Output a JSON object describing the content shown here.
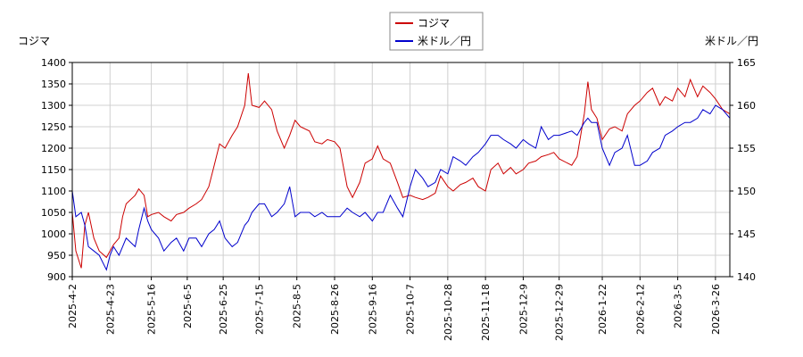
{
  "chart_data": {
    "type": "line",
    "left_axis_label": "コジマ",
    "right_axis_label": "米ドル／円",
    "left_ylim": [
      900,
      1400
    ],
    "right_ylim": [
      140,
      165
    ],
    "left_yticks": [
      900,
      950,
      1000,
      1050,
      1100,
      1150,
      1200,
      1250,
      1300,
      1350,
      1400
    ],
    "right_yticks": [
      140,
      145,
      150,
      155,
      160,
      165
    ],
    "xlim": [
      "2025-04-02",
      "2026-04-03"
    ],
    "xtick_labels": [
      "2025-4-2",
      "2025-4-23",
      "2025-5-16",
      "2025-6-5",
      "2025-6-25",
      "2025-7-15",
      "2025-8-5",
      "2025-8-26",
      "2025-9-16",
      "2025-10-7",
      "2025-10-28",
      "2025-11-18",
      "2025-12-9",
      "2025-12-29",
      "2026-1-22",
      "2026-2-12",
      "2026-3-5",
      "2026-3-26"
    ],
    "xtick_dates": [
      "2025-04-02",
      "2025-04-23",
      "2025-05-16",
      "2025-06-05",
      "2025-06-25",
      "2025-07-15",
      "2025-08-05",
      "2025-08-26",
      "2025-09-16",
      "2025-10-07",
      "2025-10-28",
      "2025-11-18",
      "2025-12-09",
      "2025-12-29",
      "2026-01-22",
      "2026-02-12",
      "2026-03-05",
      "2026-03-26"
    ],
    "grid": true,
    "legend_position": "top-center",
    "series": [
      {
        "name": "コジマ",
        "color": "#cc0000",
        "axis": "left",
        "points": [
          [
            "2025-04-02",
            1050
          ],
          [
            "2025-04-04",
            960
          ],
          [
            "2025-04-07",
            920
          ],
          [
            "2025-04-09",
            1020
          ],
          [
            "2025-04-11",
            1050
          ],
          [
            "2025-04-14",
            990
          ],
          [
            "2025-04-17",
            960
          ],
          [
            "2025-04-21",
            945
          ],
          [
            "2025-04-23",
            960
          ],
          [
            "2025-04-25",
            975
          ],
          [
            "2025-04-28",
            990
          ],
          [
            "2025-04-30",
            1040
          ],
          [
            "2025-05-02",
            1070
          ],
          [
            "2025-05-07",
            1090
          ],
          [
            "2025-05-09",
            1105
          ],
          [
            "2025-05-12",
            1090
          ],
          [
            "2025-05-14",
            1040
          ],
          [
            "2025-05-16",
            1045
          ],
          [
            "2025-05-20",
            1050
          ],
          [
            "2025-05-23",
            1040
          ],
          [
            "2025-05-27",
            1030
          ],
          [
            "2025-05-30",
            1045
          ],
          [
            "2025-06-03",
            1050
          ],
          [
            "2025-06-06",
            1060
          ],
          [
            "2025-06-10",
            1070
          ],
          [
            "2025-06-13",
            1080
          ],
          [
            "2025-06-17",
            1110
          ],
          [
            "2025-06-20",
            1160
          ],
          [
            "2025-06-23",
            1210
          ],
          [
            "2025-06-26",
            1200
          ],
          [
            "2025-06-30",
            1230
          ],
          [
            "2025-07-03",
            1250
          ],
          [
            "2025-07-07",
            1300
          ],
          [
            "2025-07-09",
            1375
          ],
          [
            "2025-07-11",
            1300
          ],
          [
            "2025-07-15",
            1295
          ],
          [
            "2025-07-18",
            1310
          ],
          [
            "2025-07-22",
            1290
          ],
          [
            "2025-07-25",
            1240
          ],
          [
            "2025-07-29",
            1200
          ],
          [
            "2025-08-01",
            1230
          ],
          [
            "2025-08-04",
            1265
          ],
          [
            "2025-08-07",
            1250
          ],
          [
            "2025-08-12",
            1240
          ],
          [
            "2025-08-15",
            1215
          ],
          [
            "2025-08-19",
            1210
          ],
          [
            "2025-08-22",
            1220
          ],
          [
            "2025-08-26",
            1215
          ],
          [
            "2025-08-29",
            1200
          ],
          [
            "2025-09-02",
            1110
          ],
          [
            "2025-09-05",
            1085
          ],
          [
            "2025-09-09",
            1120
          ],
          [
            "2025-09-12",
            1165
          ],
          [
            "2025-09-16",
            1175
          ],
          [
            "2025-09-19",
            1205
          ],
          [
            "2025-09-22",
            1175
          ],
          [
            "2025-09-26",
            1165
          ],
          [
            "2025-09-30",
            1120
          ],
          [
            "2025-10-03",
            1085
          ],
          [
            "2025-10-07",
            1090
          ],
          [
            "2025-10-10",
            1085
          ],
          [
            "2025-10-14",
            1080
          ],
          [
            "2025-10-17",
            1085
          ],
          [
            "2025-10-21",
            1095
          ],
          [
            "2025-10-24",
            1135
          ],
          [
            "2025-10-28",
            1110
          ],
          [
            "2025-10-31",
            1100
          ],
          [
            "2025-11-04",
            1115
          ],
          [
            "2025-11-07",
            1120
          ],
          [
            "2025-11-11",
            1130
          ],
          [
            "2025-11-14",
            1110
          ],
          [
            "2025-11-18",
            1100
          ],
          [
            "2025-11-21",
            1150
          ],
          [
            "2025-11-25",
            1165
          ],
          [
            "2025-11-28",
            1140
          ],
          [
            "2025-12-02",
            1155
          ],
          [
            "2025-12-05",
            1140
          ],
          [
            "2025-12-09",
            1150
          ],
          [
            "2025-12-12",
            1165
          ],
          [
            "2025-12-16",
            1170
          ],
          [
            "2025-12-19",
            1180
          ],
          [
            "2025-12-23",
            1185
          ],
          [
            "2025-12-26",
            1190
          ],
          [
            "2025-12-29",
            1175
          ],
          [
            "2026-01-05",
            1160
          ],
          [
            "2026-01-08",
            1180
          ],
          [
            "2026-01-12",
            1280
          ],
          [
            "2026-01-14",
            1355
          ],
          [
            "2026-01-16",
            1290
          ],
          [
            "2026-01-19",
            1270
          ],
          [
            "2026-01-22",
            1220
          ],
          [
            "2026-01-26",
            1245
          ],
          [
            "2026-01-29",
            1250
          ],
          [
            "2026-02-02",
            1240
          ],
          [
            "2026-02-05",
            1280
          ],
          [
            "2026-02-09",
            1300
          ],
          [
            "2026-02-12",
            1310
          ],
          [
            "2026-02-16",
            1330
          ],
          [
            "2026-02-19",
            1340
          ],
          [
            "2026-02-23",
            1300
          ],
          [
            "2026-02-26",
            1320
          ],
          [
            "2026-03-02",
            1310
          ],
          [
            "2026-03-05",
            1340
          ],
          [
            "2026-03-09",
            1320
          ],
          [
            "2026-03-12",
            1360
          ],
          [
            "2026-03-16",
            1320
          ],
          [
            "2026-03-19",
            1345
          ],
          [
            "2026-03-23",
            1330
          ],
          [
            "2026-03-26",
            1315
          ],
          [
            "2026-03-30",
            1290
          ],
          [
            "2026-04-03",
            1280
          ]
        ]
      },
      {
        "name": "米ドル／円",
        "color": "#0000cc",
        "axis": "right",
        "points": [
          [
            "2025-04-02",
            150
          ],
          [
            "2025-04-04",
            147
          ],
          [
            "2025-04-07",
            147.5
          ],
          [
            "2025-04-09",
            146
          ],
          [
            "2025-04-11",
            143.5
          ],
          [
            "2025-04-14",
            143
          ],
          [
            "2025-04-17",
            142.5
          ],
          [
            "2025-04-21",
            140.8
          ],
          [
            "2025-04-23",
            142.5
          ],
          [
            "2025-04-25",
            143.5
          ],
          [
            "2025-04-28",
            142.5
          ],
          [
            "2025-04-30",
            143.5
          ],
          [
            "2025-05-02",
            144.5
          ],
          [
            "2025-05-07",
            143.5
          ],
          [
            "2025-05-09",
            145.5
          ],
          [
            "2025-05-12",
            148
          ],
          [
            "2025-05-14",
            146.5
          ],
          [
            "2025-05-16",
            145.5
          ],
          [
            "2025-05-20",
            144.5
          ],
          [
            "2025-05-23",
            143
          ],
          [
            "2025-05-27",
            144
          ],
          [
            "2025-05-30",
            144.5
          ],
          [
            "2025-06-03",
            143
          ],
          [
            "2025-06-06",
            144.5
          ],
          [
            "2025-06-10",
            144.5
          ],
          [
            "2025-06-13",
            143.5
          ],
          [
            "2025-06-17",
            145
          ],
          [
            "2025-06-20",
            145.5
          ],
          [
            "2025-06-23",
            146.5
          ],
          [
            "2025-06-26",
            144.5
          ],
          [
            "2025-06-30",
            143.5
          ],
          [
            "2025-07-03",
            144
          ],
          [
            "2025-07-07",
            146
          ],
          [
            "2025-07-09",
            146.5
          ],
          [
            "2025-07-11",
            147.5
          ],
          [
            "2025-07-15",
            148.5
          ],
          [
            "2025-07-18",
            148.5
          ],
          [
            "2025-07-22",
            147
          ],
          [
            "2025-07-25",
            147.5
          ],
          [
            "2025-07-29",
            148.5
          ],
          [
            "2025-08-01",
            150.5
          ],
          [
            "2025-08-04",
            147
          ],
          [
            "2025-08-07",
            147.5
          ],
          [
            "2025-08-12",
            147.5
          ],
          [
            "2025-08-15",
            147
          ],
          [
            "2025-08-19",
            147.5
          ],
          [
            "2025-08-22",
            147
          ],
          [
            "2025-08-26",
            147
          ],
          [
            "2025-08-29",
            147
          ],
          [
            "2025-09-02",
            148
          ],
          [
            "2025-09-05",
            147.5
          ],
          [
            "2025-09-09",
            147
          ],
          [
            "2025-09-12",
            147.5
          ],
          [
            "2025-09-16",
            146.5
          ],
          [
            "2025-09-19",
            147.5
          ],
          [
            "2025-09-22",
            147.5
          ],
          [
            "2025-09-26",
            149.5
          ],
          [
            "2025-09-30",
            148
          ],
          [
            "2025-10-03",
            147
          ],
          [
            "2025-10-07",
            150.5
          ],
          [
            "2025-10-10",
            152.5
          ],
          [
            "2025-10-14",
            151.5
          ],
          [
            "2025-10-17",
            150.5
          ],
          [
            "2025-10-21",
            151
          ],
          [
            "2025-10-24",
            152.5
          ],
          [
            "2025-10-28",
            152
          ],
          [
            "2025-10-31",
            154
          ],
          [
            "2025-11-04",
            153.5
          ],
          [
            "2025-11-07",
            153
          ],
          [
            "2025-11-11",
            154
          ],
          [
            "2025-11-14",
            154.5
          ],
          [
            "2025-11-18",
            155.5
          ],
          [
            "2025-11-21",
            156.5
          ],
          [
            "2025-11-25",
            156.5
          ],
          [
            "2025-11-28",
            156
          ],
          [
            "2025-12-02",
            155.5
          ],
          [
            "2025-12-05",
            155
          ],
          [
            "2025-12-09",
            156
          ],
          [
            "2025-12-12",
            155.5
          ],
          [
            "2025-12-16",
            155
          ],
          [
            "2025-12-19",
            157.5
          ],
          [
            "2025-12-23",
            156
          ],
          [
            "2025-12-26",
            156.5
          ],
          [
            "2025-12-29",
            156.5
          ],
          [
            "2026-01-05",
            157
          ],
          [
            "2026-01-08",
            156.5
          ],
          [
            "2026-01-12",
            158
          ],
          [
            "2026-01-14",
            158.5
          ],
          [
            "2026-01-16",
            158
          ],
          [
            "2026-01-19",
            158
          ],
          [
            "2026-01-22",
            155
          ],
          [
            "2026-01-26",
            153
          ],
          [
            "2026-01-29",
            154.5
          ],
          [
            "2026-02-02",
            155
          ],
          [
            "2026-02-05",
            156.5
          ],
          [
            "2026-02-09",
            153
          ],
          [
            "2026-02-12",
            153
          ],
          [
            "2026-02-16",
            153.5
          ],
          [
            "2026-02-19",
            154.5
          ],
          [
            "2026-02-23",
            155
          ],
          [
            "2026-02-26",
            156.5
          ],
          [
            "2026-03-02",
            157
          ],
          [
            "2026-03-05",
            157.5
          ],
          [
            "2026-03-09",
            158
          ],
          [
            "2026-03-12",
            158
          ],
          [
            "2026-03-16",
            158.5
          ],
          [
            "2026-03-19",
            159.5
          ],
          [
            "2026-03-23",
            159
          ],
          [
            "2026-03-26",
            160
          ],
          [
            "2026-03-30",
            159.5
          ],
          [
            "2026-04-03",
            158.5
          ]
        ]
      }
    ]
  }
}
